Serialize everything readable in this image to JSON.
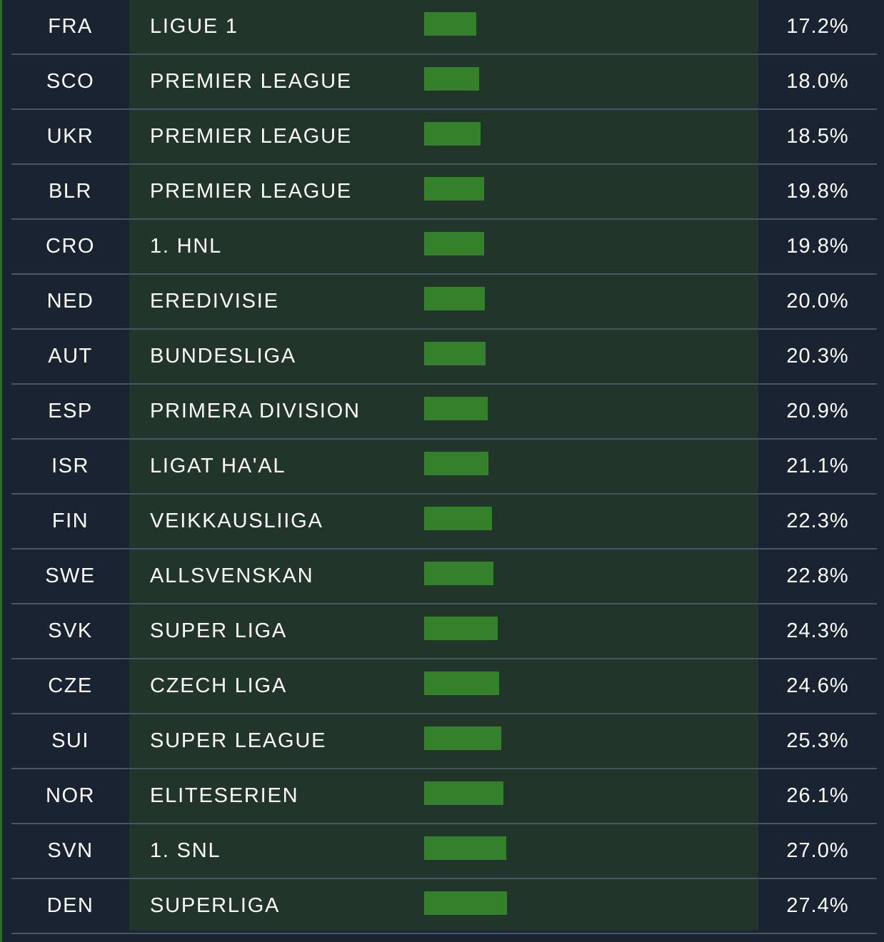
{
  "colors": {
    "background": "#1a2332",
    "middle_panel": "#21352a",
    "bar": "#35802a",
    "separator": "#4a5564",
    "text": "#ffffff"
  },
  "chart_data": {
    "type": "bar",
    "orientation": "horizontal",
    "title": "",
    "xlabel": "",
    "ylabel": "",
    "xlim": [
      0,
      100
    ],
    "series": [
      {
        "name": "",
        "color": "#35802a"
      }
    ],
    "rows": [
      {
        "code": "FRA",
        "league": "LIGUE 1",
        "value": 17.2,
        "label": "17.2%"
      },
      {
        "code": "SCO",
        "league": "PREMIER LEAGUE",
        "value": 18.0,
        "label": "18.0%"
      },
      {
        "code": "UKR",
        "league": "PREMIER LEAGUE",
        "value": 18.5,
        "label": "18.5%"
      },
      {
        "code": "BLR",
        "league": "PREMIER LEAGUE",
        "value": 19.8,
        "label": "19.8%"
      },
      {
        "code": "CRO",
        "league": "1. HNL",
        "value": 19.8,
        "label": "19.8%"
      },
      {
        "code": "NED",
        "league": "EREDIVISIE",
        "value": 20.0,
        "label": "20.0%"
      },
      {
        "code": "AUT",
        "league": "BUNDESLIGA",
        "value": 20.3,
        "label": "20.3%"
      },
      {
        "code": "ESP",
        "league": "PRIMERA DIVISION",
        "value": 20.9,
        "label": "20.9%"
      },
      {
        "code": "ISR",
        "league": "LIGAT HA'AL",
        "value": 21.1,
        "label": "21.1%"
      },
      {
        "code": "FIN",
        "league": "VEIKKAUSLIIGA",
        "value": 22.3,
        "label": "22.3%"
      },
      {
        "code": "SWE",
        "league": "ALLSVENSKAN",
        "value": 22.8,
        "label": "22.8%"
      },
      {
        "code": "SVK",
        "league": "SUPER LIGA",
        "value": 24.3,
        "label": "24.3%"
      },
      {
        "code": "CZE",
        "league": "CZECH LIGA",
        "value": 24.6,
        "label": "24.6%"
      },
      {
        "code": "SUI",
        "league": "SUPER LEAGUE",
        "value": 25.3,
        "label": "25.3%"
      },
      {
        "code": "NOR",
        "league": "ELITESERIEN",
        "value": 26.1,
        "label": "26.1%"
      },
      {
        "code": "SVN",
        "league": "1. SNL",
        "value": 27.0,
        "label": "27.0%"
      },
      {
        "code": "DEN",
        "league": "SUPERLIGA",
        "value": 27.4,
        "label": "27.4%"
      }
    ]
  }
}
